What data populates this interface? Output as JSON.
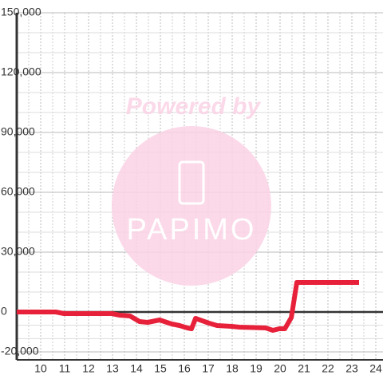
{
  "chart_data": {
    "type": "line",
    "watermark": {
      "title": "Powered by",
      "brand": "PAPIMO"
    },
    "x": [
      9,
      10.63,
      10.97,
      12.97,
      13.3,
      13.73,
      14.13,
      14.47,
      14.97,
      15.47,
      15.8,
      16.13,
      16.3,
      16.47,
      17.03,
      17.37,
      17.97,
      18.3,
      19.4,
      19.7,
      19.97,
      20.2,
      20.47,
      20.7,
      23.3
    ],
    "series": [
      {
        "color": "#e8213a",
        "values": [
          0,
          0,
          -800,
          -800,
          -1600,
          -2000,
          -4800,
          -5200,
          -4000,
          -6000,
          -6800,
          -8000,
          -8400,
          -3200,
          -5600,
          -6800,
          -7200,
          -7600,
          -8000,
          -9200,
          -8400,
          -8400,
          -2800,
          14800,
          14800
        ]
      }
    ],
    "xlim": [
      9,
      24.3
    ],
    "ylim": [
      -24000,
      150000
    ],
    "xticks": [
      10,
      11,
      12,
      13,
      14,
      15,
      16,
      17,
      18,
      19,
      20,
      21,
      22,
      23,
      24
    ],
    "yticks": [
      {
        "value": -20000,
        "label": "-20,000"
      },
      0,
      {
        "value": 30000,
        "label": "30,000"
      },
      {
        "value": 60000,
        "label": "60,000"
      },
      {
        "value": 90000,
        "label": "90,000"
      },
      {
        "value": 120000,
        "label": "120,000"
      },
      {
        "value": 150000,
        "label": "150,000"
      }
    ],
    "grid": true
  }
}
